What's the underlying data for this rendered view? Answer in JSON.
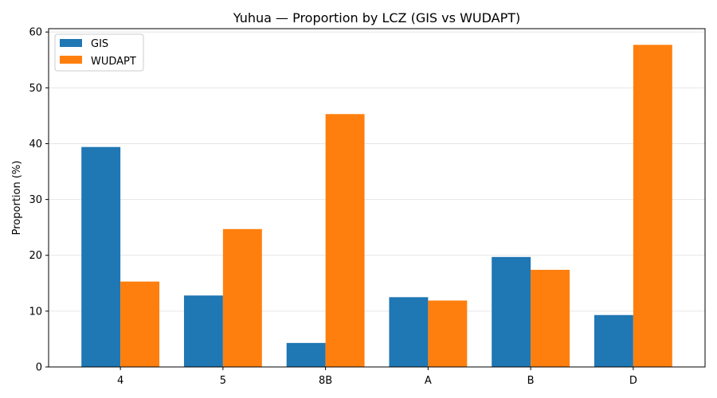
{
  "chart_data": {
    "type": "bar",
    "title": "Yuhua — Proportion by LCZ (GIS vs WUDAPT)",
    "xlabel": "",
    "ylabel": "Proportion (%)",
    "categories": [
      "4",
      "5",
      "8B",
      "A",
      "B",
      "D"
    ],
    "series": [
      {
        "name": "GIS",
        "color": "#1f77b4",
        "values": [
          39.4,
          12.8,
          4.3,
          12.5,
          19.7,
          9.3
        ]
      },
      {
        "name": "WUDAPT",
        "color": "#ff7f0e",
        "values": [
          15.3,
          24.7,
          45.3,
          11.9,
          17.4,
          57.7
        ]
      }
    ],
    "ylim": [
      0,
      60.6
    ],
    "yticks": [
      0,
      10,
      20,
      30,
      40,
      50,
      60
    ],
    "grid": "y",
    "legend": "top-left"
  }
}
